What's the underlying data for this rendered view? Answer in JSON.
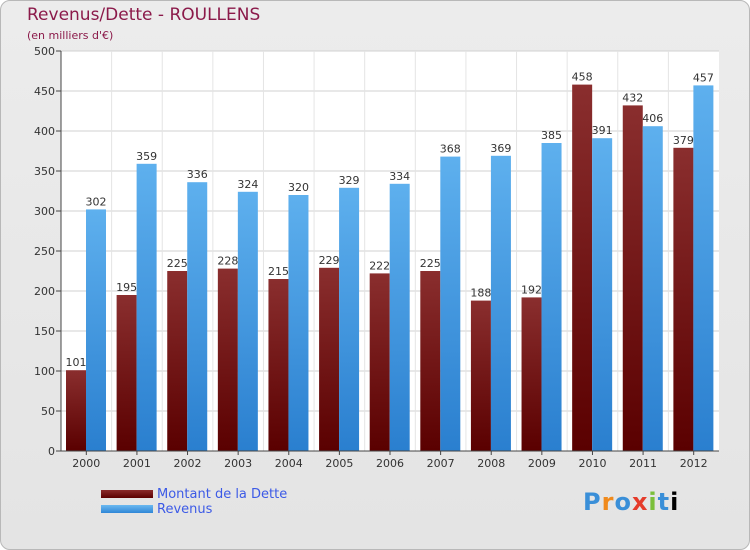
{
  "chart_data": {
    "type": "bar",
    "title": "Revenus/Dette - ROULLENS",
    "subtitle": "(en milliers d'€)",
    "xlabel": "",
    "ylabel": "",
    "ylim": [
      0,
      500
    ],
    "yticks": [
      0,
      50,
      100,
      150,
      200,
      250,
      300,
      350,
      400,
      450,
      500
    ],
    "grid": true,
    "legend_position": "bottom-left",
    "categories": [
      "2000",
      "2001",
      "2002",
      "2003",
      "2004",
      "2005",
      "2006",
      "2007",
      "2008",
      "2009",
      "2010",
      "2011",
      "2012"
    ],
    "series": [
      {
        "name": "Montant de la Dette",
        "color": "#7a1c1c",
        "values": [
          101,
          195,
          225,
          228,
          215,
          229,
          222,
          225,
          188,
          192,
          458,
          432,
          379
        ]
      },
      {
        "name": "Revenus",
        "color": "#4aa3e8",
        "values": [
          302,
          359,
          336,
          324,
          320,
          329,
          334,
          368,
          369,
          385,
          391,
          406,
          457
        ]
      }
    ]
  },
  "logo": {
    "letters": [
      "P",
      "r",
      "o",
      "x",
      "i",
      "t",
      "i"
    ],
    "text": "Proxiti"
  }
}
